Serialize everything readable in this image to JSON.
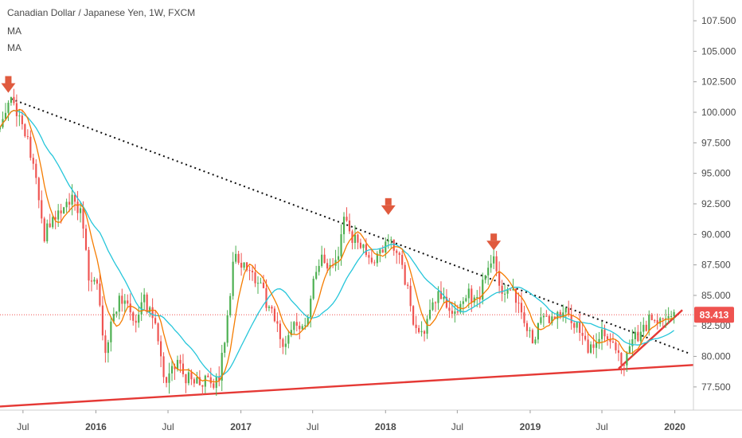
{
  "header": {
    "symbol_line": "Canadian Dollar / Japanese Yen, 1W, FXCM",
    "indicator_1": "MA",
    "indicator_2": "MA"
  },
  "colors": {
    "up": "#4caf50",
    "down": "#ef5350",
    "ma_fast": "#f57c00",
    "ma_slow": "#26c6da",
    "trend": "#e53935",
    "resistance": "#111111",
    "price_line": "#ef5350",
    "arrow": "#e05a3e"
  },
  "chart_data": {
    "type": "candlestick",
    "interval": "1W",
    "x_range": [
      "2015-05-04",
      "2020-02-17"
    ],
    "y_range": [
      75.6,
      109.2
    ],
    "y_scale": "linear",
    "grid": false,
    "y_ticks": [
      "77.500",
      "80.000",
      "82.500",
      "85.000",
      "87.500",
      "90.000",
      "92.500",
      "95.000",
      "97.500",
      "100.000",
      "102.500",
      "105.000",
      "107.500"
    ],
    "x_ticks": [
      {
        "label": "Jul",
        "date": "2015-07-01",
        "bold": false
      },
      {
        "label": "2016",
        "date": "2016-01-01",
        "bold": true
      },
      {
        "label": "Jul",
        "date": "2016-07-01",
        "bold": false
      },
      {
        "label": "2017",
        "date": "2017-01-01",
        "bold": true
      },
      {
        "label": "Jul",
        "date": "2017-07-01",
        "bold": false
      },
      {
        "label": "2018",
        "date": "2018-01-01",
        "bold": true
      },
      {
        "label": "Jul",
        "date": "2018-07-01",
        "bold": false
      },
      {
        "label": "2019",
        "date": "2019-01-01",
        "bold": true
      },
      {
        "label": "Jul",
        "date": "2019-07-01",
        "bold": false
      },
      {
        "label": "2020",
        "date": "2020-01-01",
        "bold": true
      }
    ],
    "price_anchors": [
      [
        "2015-05-04",
        98.6
      ],
      [
        "2015-06-01",
        101.0
      ],
      [
        "2015-07-06",
        98.5
      ],
      [
        "2015-08-03",
        94.5
      ],
      [
        "2015-08-24",
        90.0
      ],
      [
        "2015-09-14",
        91.5
      ],
      [
        "2015-10-12",
        92.5
      ],
      [
        "2015-11-02",
        93.0
      ],
      [
        "2015-11-23",
        92.0
      ],
      [
        "2015-12-14",
        86.5
      ],
      [
        "2016-01-04",
        85.5
      ],
      [
        "2016-01-25",
        80.0
      ],
      [
        "2016-02-15",
        84.0
      ],
      [
        "2016-03-14",
        85.0
      ],
      [
        "2016-04-11",
        83.0
      ],
      [
        "2016-05-02",
        84.5
      ],
      [
        "2016-05-30",
        82.5
      ],
      [
        "2016-06-27",
        77.5
      ],
      [
        "2016-07-18",
        79.5
      ],
      [
        "2016-08-08",
        78.5
      ],
      [
        "2016-09-05",
        78.0
      ],
      [
        "2016-10-03",
        78.0
      ],
      [
        "2016-10-24",
        77.5
      ],
      [
        "2016-11-07",
        78.5
      ],
      [
        "2016-11-28",
        83.0
      ],
      [
        "2016-12-12",
        88.0
      ],
      [
        "2017-01-16",
        87.0
      ],
      [
        "2017-02-13",
        86.0
      ],
      [
        "2017-03-13",
        84.0
      ],
      [
        "2017-04-17",
        81.0
      ],
      [
        "2017-05-15",
        82.5
      ],
      [
        "2017-06-12",
        82.0
      ],
      [
        "2017-07-03",
        86.0
      ],
      [
        "2017-07-24",
        88.5
      ],
      [
        "2017-08-14",
        87.0
      ],
      [
        "2017-09-04",
        88.0
      ],
      [
        "2017-09-18",
        91.0
      ],
      [
        "2017-10-16",
        89.5
      ],
      [
        "2017-11-13",
        88.5
      ],
      [
        "2017-12-11",
        88.0
      ],
      [
        "2018-01-08",
        90.0
      ],
      [
        "2018-01-22",
        89.0
      ],
      [
        "2018-02-12",
        87.5
      ],
      [
        "2018-03-12",
        83.0
      ],
      [
        "2018-04-02",
        81.5
      ],
      [
        "2018-04-23",
        83.5
      ],
      [
        "2018-05-14",
        85.0
      ],
      [
        "2018-06-11",
        84.0
      ],
      [
        "2018-07-02",
        83.5
      ],
      [
        "2018-07-30",
        85.0
      ],
      [
        "2018-08-20",
        84.5
      ],
      [
        "2018-09-10",
        86.5
      ],
      [
        "2018-10-01",
        88.0
      ],
      [
        "2018-10-22",
        85.5
      ],
      [
        "2018-11-19",
        85.5
      ],
      [
        "2018-12-10",
        83.5
      ],
      [
        "2019-01-07",
        81.5
      ],
      [
        "2019-02-04",
        83.0
      ],
      [
        "2019-03-04",
        83.5
      ],
      [
        "2019-04-01",
        83.5
      ],
      [
        "2019-04-29",
        82.5
      ],
      [
        "2019-05-27",
        80.5
      ],
      [
        "2019-06-17",
        81.5
      ],
      [
        "2019-07-15",
        82.0
      ],
      [
        "2019-08-05",
        80.0
      ],
      [
        "2019-08-26",
        79.5
      ],
      [
        "2019-09-16",
        81.5
      ],
      [
        "2019-10-07",
        82.0
      ],
      [
        "2019-10-28",
        83.0
      ],
      [
        "2019-11-18",
        82.5
      ],
      [
        "2019-12-09",
        83.5
      ],
      [
        "2019-12-30",
        83.4
      ]
    ],
    "last_price": "83.413",
    "trendlines": [
      {
        "name": "resistance",
        "style": "dotted",
        "points": [
          [
            "2015-06-01",
            101.1
          ],
          [
            "2020-02-10",
            80.2
          ]
        ]
      },
      {
        "name": "long-term-support",
        "style": "solid",
        "points": [
          [
            "2015-05-04",
            75.9
          ],
          [
            "2020-02-17",
            79.3
          ]
        ]
      },
      {
        "name": "short-term-support",
        "style": "solid",
        "points": [
          [
            "2019-08-12",
            79.0
          ],
          [
            "2020-01-20",
            83.8
          ]
        ]
      }
    ],
    "arrows": [
      {
        "date": "2015-05-25",
        "price": 101.4
      },
      {
        "date": "2018-01-08",
        "price": 91.4
      },
      {
        "date": "2018-10-01",
        "price": 88.5
      }
    ]
  }
}
